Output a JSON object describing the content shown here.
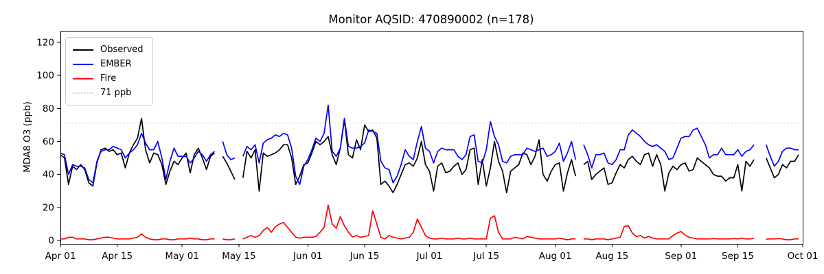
{
  "title": "Monitor AQSID: 470890002 (n=178)",
  "ylabel": "MDA8 O3 (ppb)",
  "chart_data": {
    "type": "line",
    "title": "Monitor AQSID: 470890002 (n=178)",
    "xlabel": "",
    "ylabel": "MDA8 O3 (ppb)",
    "x_unit": "days since Apr 01",
    "xlim_days": [
      0,
      183
    ],
    "ylim": [
      -2,
      127
    ],
    "yticks": [
      0,
      20,
      40,
      60,
      80,
      100,
      120
    ],
    "xticks": [
      {
        "day": 0,
        "label": "Apr 01"
      },
      {
        "day": 14,
        "label": "Apr 15"
      },
      {
        "day": 30,
        "label": "May 01"
      },
      {
        "day": 44,
        "label": "May 15"
      },
      {
        "day": 61,
        "label": "Jun 01"
      },
      {
        "day": 75,
        "label": "Jun 15"
      },
      {
        "day": 91,
        "label": "Jul 01"
      },
      {
        "day": 105,
        "label": "Jul 15"
      },
      {
        "day": 122,
        "label": "Aug 01"
      },
      {
        "day": 136,
        "label": "Aug 15"
      },
      {
        "day": 153,
        "label": "Sep 01"
      },
      {
        "day": 167,
        "label": "Sep 15"
      },
      {
        "day": 183,
        "label": "Oct 01"
      }
    ],
    "grid": false,
    "legend_position": "upper left",
    "legend": [
      {
        "label": "Observed",
        "color": "#000000",
        "style": "solid"
      },
      {
        "label": "EMBER",
        "color": "#0000ff",
        "style": "solid"
      },
      {
        "label": "Fire",
        "color": "#ff0000",
        "style": "solid"
      },
      {
        "label": "71 ppb",
        "color": "#d3d3d3",
        "style": "dotted"
      }
    ],
    "threshold": {
      "value": 71,
      "label": "71 ppb",
      "color": "#d3d3d3",
      "style": "dotted"
    },
    "series": [
      {
        "name": "Observed",
        "color": "#000000",
        "values": [
          52,
          50,
          34,
          45,
          43,
          46,
          43,
          35,
          33,
          47,
          55,
          56,
          54,
          55,
          52,
          53,
          44,
          53,
          58,
          62,
          74,
          55,
          47,
          53,
          52,
          46,
          34,
          42,
          48,
          46,
          50,
          53,
          41,
          52,
          56,
          50,
          43,
          51,
          53,
          null,
          51,
          47,
          42,
          37,
          null,
          38,
          54,
          50,
          55,
          30,
          53,
          51,
          52,
          53,
          55,
          58,
          58,
          50,
          34,
          39,
          46,
          47,
          53,
          60,
          58,
          60,
          63,
          52,
          46,
          56,
          73,
          52,
          50,
          61,
          55,
          70,
          66,
          67,
          62,
          34,
          36,
          33,
          29,
          34,
          40,
          46,
          47,
          45,
          50,
          60,
          46,
          42,
          30,
          45,
          47,
          41,
          42,
          45,
          47,
          40,
          43,
          55,
          56,
          34,
          49,
          33,
          44,
          60,
          48,
          42,
          29,
          42,
          44,
          46,
          53,
          52,
          46,
          51,
          61,
          40,
          36,
          42,
          46,
          47,
          30,
          41,
          49,
          39,
          null,
          46,
          48,
          37,
          40,
          42,
          44,
          34,
          35,
          41,
          46,
          44,
          49,
          51,
          48,
          46,
          52,
          53,
          45,
          52,
          46,
          30,
          41,
          45,
          43,
          46,
          47,
          42,
          43,
          50,
          48,
          46,
          44,
          40,
          39,
          39,
          36,
          38,
          38,
          46,
          30,
          48,
          45,
          49,
          null,
          null,
          50,
          44,
          38,
          40,
          46,
          44,
          48,
          48,
          52
        ]
      },
      {
        "name": "EMBER",
        "color": "#0000ff",
        "values": [
          53,
          52,
          40,
          46,
          45,
          45,
          44,
          37,
          35,
          48,
          54,
          55,
          55,
          57,
          56,
          55,
          50,
          53,
          55,
          58,
          65,
          59,
          55,
          55,
          60,
          50,
          37,
          48,
          56,
          51,
          51,
          51,
          47,
          50,
          54,
          52,
          48,
          52,
          54,
          null,
          60,
          52,
          49,
          50,
          null,
          51,
          57,
          55,
          58,
          47,
          59,
          61,
          62,
          64,
          63,
          65,
          64,
          56,
          39,
          34,
          45,
          49,
          55,
          62,
          60,
          65,
          82,
          54,
          51,
          56,
          74,
          57,
          56,
          56,
          57,
          59,
          67,
          66,
          65,
          48,
          44,
          43,
          35,
          39,
          46,
          55,
          51,
          49,
          60,
          69,
          56,
          54,
          47,
          54,
          56,
          55,
          55,
          55,
          51,
          49,
          52,
          63,
          64,
          48,
          47,
          55,
          72,
          63,
          58,
          48,
          47,
          51,
          52,
          52,
          52,
          56,
          55,
          54,
          55,
          56,
          51,
          52,
          54,
          59,
          48,
          53,
          60,
          49,
          null,
          58,
          52,
          44,
          52,
          52,
          53,
          47,
          46,
          49,
          55,
          55,
          64,
          67,
          65,
          63,
          60,
          58,
          57,
          58,
          56,
          54,
          49,
          50,
          56,
          62,
          63,
          63,
          67,
          68,
          63,
          58,
          50,
          52,
          52,
          56,
          52,
          52,
          52,
          55,
          51,
          54,
          55,
          58,
          null,
          null,
          58,
          51,
          45,
          48,
          54,
          56,
          56,
          55,
          55
        ]
      },
      {
        "name": "Fire",
        "color": "#ff0000",
        "values": [
          1,
          1,
          2,
          2,
          1,
          1,
          1,
          0.5,
          0.5,
          1,
          1.5,
          2,
          2,
          1.5,
          1,
          1,
          1,
          1,
          1.5,
          2,
          4,
          2,
          1,
          0.5,
          0.5,
          1,
          1,
          0.5,
          0.5,
          1,
          1,
          1,
          1.5,
          1,
          1,
          0.5,
          0.5,
          1,
          1,
          null,
          1,
          0.5,
          0.5,
          1,
          null,
          1,
          2,
          3,
          2,
          3,
          6,
          8,
          5,
          8.5,
          10,
          11,
          8,
          5,
          2,
          1.5,
          2,
          2,
          2,
          2.5,
          5,
          8,
          21.5,
          10,
          7.5,
          14.5,
          9,
          5,
          2.2,
          3,
          2,
          2.5,
          3,
          18,
          10,
          2,
          1,
          3,
          2,
          1.5,
          1,
          1.5,
          2,
          5,
          13,
          8,
          3,
          1.5,
          1,
          1,
          1.5,
          1,
          1,
          1,
          1.5,
          1,
          1,
          1.5,
          1,
          1,
          1,
          1,
          13.5,
          15,
          5,
          1,
          1,
          1,
          2,
          1.5,
          1,
          2.5,
          2,
          1.5,
          1,
          1,
          1,
          1,
          1,
          1.5,
          1,
          0.5,
          1,
          1,
          null,
          1,
          1,
          0.5,
          1,
          1,
          1,
          0.5,
          1,
          1.5,
          2,
          8.5,
          9,
          4.5,
          2.5,
          3,
          1.5,
          2.5,
          1.5,
          1,
          1,
          1,
          1,
          3,
          4.5,
          5.5,
          3.3,
          2,
          1.5,
          1,
          1,
          1,
          1,
          1.2,
          1,
          1,
          1,
          1,
          1.2,
          1,
          1.5,
          1,
          1,
          1.3,
          null,
          null,
          0.8,
          1,
          1,
          1.2,
          1,
          0.5,
          0.5,
          1,
          1
        ]
      }
    ]
  }
}
